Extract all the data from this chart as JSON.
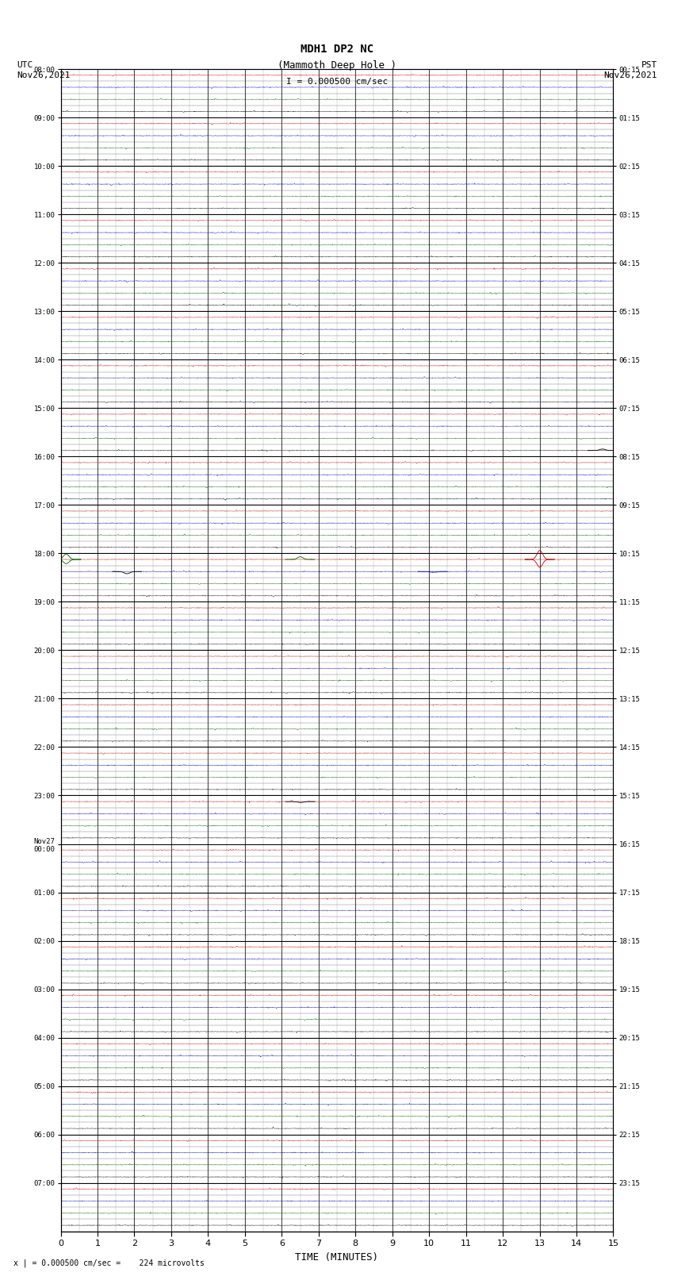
{
  "title_line1": "MDH1 DP2 NC",
  "title_line2": "(Mammoth Deep Hole )",
  "scale_text": "I = 0.000500 cm/sec",
  "utc_label": "UTC\nNov26,2021",
  "pst_label": "PST\nNov26,2021",
  "footer_text": "x | = 0.000500 cm/sec =    224 microvolts",
  "xlabel": "TIME (MINUTES)",
  "left_yticks_labels": [
    "08:00",
    "09:00",
    "10:00",
    "11:00",
    "12:00",
    "13:00",
    "14:00",
    "15:00",
    "16:00",
    "17:00",
    "18:00",
    "19:00",
    "20:00",
    "21:00",
    "22:00",
    "23:00",
    "Nov27\n00:00",
    "01:00",
    "02:00",
    "03:00",
    "04:00",
    "05:00",
    "06:00",
    "07:00"
  ],
  "right_yticks_labels": [
    "00:15",
    "01:15",
    "02:15",
    "03:15",
    "04:15",
    "05:15",
    "06:15",
    "07:15",
    "08:15",
    "09:15",
    "10:15",
    "11:15",
    "12:15",
    "13:15",
    "14:15",
    "15:15",
    "16:15",
    "17:15",
    "18:15",
    "19:15",
    "20:15",
    "21:15",
    "22:15",
    "23:15"
  ],
  "n_hours": 24,
  "subrows_per_hour": 4,
  "minutes_per_row": 15,
  "bg_color": "#ffffff",
  "grid_color": "#000000",
  "subrow_colors": [
    "#cc0000",
    "#0000cc",
    "#006600",
    "#000000"
  ],
  "noise_amplitude": 0.012,
  "spike_events": [
    {
      "hour": 10,
      "subrow": 0,
      "minute": 0.15,
      "amplitude": 0.45,
      "color": "#006600",
      "direction": 1
    },
    {
      "hour": 10,
      "subrow": 0,
      "minute": 0.15,
      "amplitude": 0.35,
      "color": "#006600",
      "direction": -1
    },
    {
      "hour": 10,
      "subrow": 1,
      "minute": 1.8,
      "amplitude": 0.18,
      "color": "#000000",
      "direction": -1
    },
    {
      "hour": 10,
      "subrow": 0,
      "minute": 6.5,
      "amplitude": 0.22,
      "color": "#006600",
      "direction": 1
    },
    {
      "hour": 10,
      "subrow": 1,
      "minute": 10.1,
      "amplitude": 0.06,
      "color": "#0000cc",
      "direction": -1
    },
    {
      "hour": 10,
      "subrow": 0,
      "minute": 13.0,
      "amplitude": 0.75,
      "color": "#cc0000",
      "direction": 1
    },
    {
      "hour": 10,
      "subrow": 0,
      "minute": 13.0,
      "amplitude": 0.65,
      "color": "#cc0000",
      "direction": -1
    },
    {
      "hour": 7,
      "subrow": 3,
      "minute": 14.7,
      "amplitude": 0.12,
      "color": "#000000",
      "direction": 1
    },
    {
      "hour": 15,
      "subrow": 0,
      "minute": 6.5,
      "amplitude": 0.08,
      "color": "#000000",
      "direction": -1
    }
  ]
}
